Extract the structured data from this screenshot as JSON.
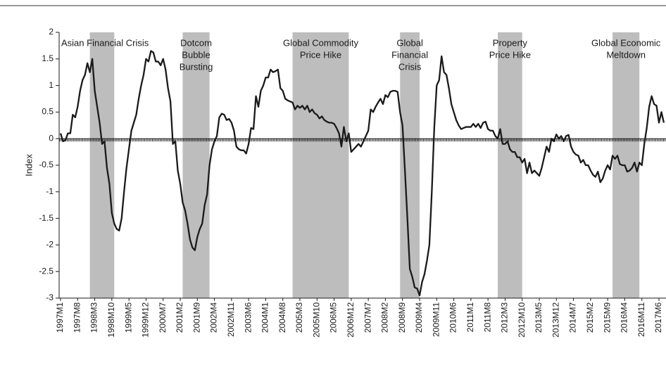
{
  "chart_data": {
    "type": "line",
    "y_label": "Index",
    "categories": [
      "1997M1",
      null,
      null,
      null,
      null,
      null,
      null,
      "1997M8",
      null,
      null,
      null,
      null,
      null,
      null,
      "1998M3",
      null,
      null,
      null,
      null,
      null,
      null,
      "1998M10",
      null,
      null,
      null,
      null,
      null,
      null,
      "1999M5",
      null,
      null,
      null,
      null,
      null,
      null,
      "1999M12",
      null,
      null,
      null,
      null,
      null,
      null,
      "2000M7",
      null,
      null,
      null,
      null,
      null,
      null,
      "2001M2",
      null,
      null,
      null,
      null,
      null,
      null,
      "2001M9",
      null,
      null,
      null,
      null,
      null,
      null,
      "2002M4",
      null,
      null,
      null,
      null,
      null,
      null,
      "2002M11",
      null,
      null,
      null,
      null,
      null,
      null,
      "2003M6",
      null,
      null,
      null,
      null,
      null,
      null,
      "2004M1",
      null,
      null,
      null,
      null,
      null,
      null,
      "2004M8",
      null,
      null,
      null,
      null,
      null,
      null,
      "2005M3",
      null,
      null,
      null,
      null,
      null,
      null,
      "2005M10",
      null,
      null,
      null,
      null,
      null,
      null,
      "2006M5",
      null,
      null,
      null,
      null,
      null,
      null,
      "2006M12",
      null,
      null,
      null,
      null,
      null,
      null,
      "2007M7",
      null,
      null,
      null,
      null,
      null,
      null,
      "2008M2",
      null,
      null,
      null,
      null,
      null,
      null,
      "2008M9",
      null,
      null,
      null,
      null,
      null,
      null,
      "2009M4",
      null,
      null,
      null,
      null,
      null,
      null,
      "2009M11",
      null,
      null,
      null,
      null,
      null,
      null,
      "2010M6",
      null,
      null,
      null,
      null,
      null,
      null,
      "2011M1",
      null,
      null,
      null,
      null,
      null,
      null,
      "2011M8",
      null,
      null,
      null,
      null,
      null,
      null,
      "2012M3",
      null,
      null,
      null,
      null,
      null,
      null,
      "2012M10",
      null,
      null,
      null,
      null,
      null,
      null,
      "2013M5",
      null,
      null,
      null,
      null,
      null,
      null,
      "2013M12",
      null,
      null,
      null,
      null,
      null,
      null,
      "2014M7",
      null,
      null,
      null,
      null,
      null,
      null,
      "2015M2",
      null,
      null,
      null,
      null,
      null,
      null,
      "2015M9",
      null,
      null,
      null,
      null,
      null,
      null,
      "2016M4",
      null,
      null,
      null,
      null,
      null,
      null,
      "2016M11",
      null,
      null,
      null,
      null,
      null,
      null,
      "2017M6",
      null,
      null
    ],
    "series": [
      {
        "color": "#1a1a1a",
        "values": [
          0.1,
          -0.05,
          -0.03,
          0.1,
          0.1,
          0.45,
          0.4,
          0.6,
          0.9,
          1.1,
          1.2,
          1.42,
          1.25,
          1.5,
          0.9,
          0.6,
          0.3,
          -0.1,
          -0.05,
          -0.55,
          -0.85,
          -1.4,
          -1.6,
          -1.7,
          -1.73,
          -1.5,
          -1.0,
          -0.55,
          -0.2,
          0.15,
          0.3,
          0.45,
          0.75,
          1.0,
          1.2,
          1.5,
          1.45,
          1.65,
          1.62,
          1.45,
          1.45,
          1.38,
          1.5,
          1.3,
          0.95,
          0.7,
          -0.1,
          -0.05,
          -0.6,
          -0.85,
          -1.2,
          -1.35,
          -1.6,
          -1.9,
          -2.05,
          -2.1,
          -1.85,
          -1.7,
          -1.6,
          -1.25,
          -1.05,
          -0.5,
          -0.2,
          -0.05,
          0.05,
          0.4,
          0.47,
          0.45,
          0.35,
          0.37,
          0.3,
          0.15,
          -0.15,
          -0.2,
          -0.22,
          -0.22,
          -0.28,
          -0.1,
          0.2,
          0.18,
          0.8,
          0.6,
          0.9,
          1.0,
          1.15,
          1.15,
          1.3,
          1.25,
          1.27,
          1.3,
          0.95,
          0.9,
          0.75,
          0.72,
          0.7,
          0.68,
          0.55,
          0.62,
          0.58,
          0.62,
          0.55,
          0.62,
          0.5,
          0.55,
          0.48,
          0.45,
          0.38,
          0.42,
          0.35,
          0.32,
          0.3,
          0.3,
          0.28,
          0.2,
          0.1,
          -0.15,
          0.22,
          -0.05,
          0.1,
          -0.25,
          -0.2,
          -0.15,
          -0.1,
          -0.15,
          -0.05,
          0.05,
          0.15,
          0.55,
          0.5,
          0.6,
          0.68,
          0.75,
          0.65,
          0.82,
          0.78,
          0.88,
          0.9,
          0.9,
          0.88,
          0.5,
          0.25,
          -0.6,
          -1.5,
          -2.45,
          -2.6,
          -2.8,
          -2.82,
          -2.95,
          -2.7,
          -2.55,
          -2.3,
          -2.0,
          -1.0,
          0.2,
          1.0,
          1.1,
          1.55,
          1.25,
          1.2,
          0.95,
          0.65,
          0.5,
          0.35,
          0.25,
          0.18,
          0.2,
          0.22,
          0.22,
          0.22,
          0.28,
          0.22,
          0.28,
          0.2,
          0.3,
          0.32,
          0.18,
          0.15,
          0.15,
          0.05,
          0.0,
          0.18,
          -0.1,
          -0.1,
          -0.05,
          -0.2,
          -0.25,
          -0.25,
          -0.35,
          -0.35,
          -0.45,
          -0.38,
          -0.65,
          -0.45,
          -0.65,
          -0.6,
          -0.65,
          -0.7,
          -0.55,
          -0.35,
          -0.15,
          -0.25,
          0.0,
          -0.05,
          0.08,
          0.0,
          0.05,
          -0.05,
          0.05,
          0.07,
          -0.15,
          -0.25,
          -0.3,
          -0.32,
          -0.45,
          -0.4,
          -0.5,
          -0.5,
          -0.6,
          -0.68,
          -0.72,
          -0.62,
          -0.82,
          -0.75,
          -0.6,
          -0.5,
          -0.58,
          -0.32,
          -0.38,
          -0.32,
          -0.48,
          -0.5,
          -0.5,
          -0.62,
          -0.6,
          -0.55,
          -0.45,
          -0.62,
          -0.45,
          -0.5,
          -0.1,
          0.2,
          0.6,
          0.8,
          0.65,
          0.62,
          0.3,
          0.5,
          0.3
        ]
      }
    ],
    "ylim": [
      -3,
      2
    ],
    "yticks": [
      -3,
      -2.5,
      -2,
      -1.5,
      -1,
      -0.5,
      0,
      0.5,
      1,
      1.5,
      2
    ],
    "zero_line": true,
    "shaded_regions": [
      {
        "label": [
          "Asian Financial Crisis"
        ],
        "start": "1998M1",
        "end": "1998M11"
      },
      {
        "label": [
          "Dotcom",
          "Bubble",
          "Bursting"
        ],
        "start": "2001M3",
        "end": "2002M2"
      },
      {
        "label": [
          "Global Commodity",
          "Price Hike"
        ],
        "start": "2004M12",
        "end": "2006M11"
      },
      {
        "label": [
          "Global",
          "Financial",
          "Crisis"
        ],
        "start": "2008M8",
        "end": "2009M4"
      },
      {
        "label": [
          "Property",
          "Price Hike"
        ],
        "start": "2011M12",
        "end": "2012M10"
      },
      {
        "label": [
          "Global Economic",
          "Meltdown"
        ],
        "start": "2015M11",
        "end": "2016M10"
      }
    ],
    "shade_color": "#bdbdbd"
  }
}
